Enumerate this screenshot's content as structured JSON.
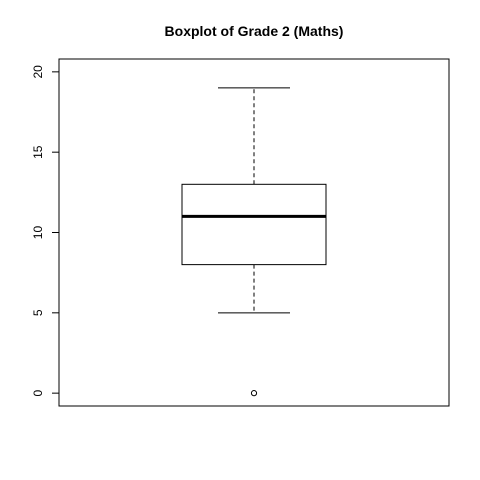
{
  "chart_data": {
    "type": "boxplot",
    "title": "Boxplot of Grade 2 (Maths)",
    "xlabel": "",
    "ylabel": "",
    "ylim": [
      -0.8,
      20.8
    ],
    "yticks": [
      0,
      5,
      10,
      15,
      20
    ],
    "grid": false,
    "boxes": [
      {
        "whisker_low": 5,
        "q1": 8,
        "median": 11,
        "q3": 13,
        "whisker_high": 19,
        "outliers": [
          0
        ]
      }
    ]
  }
}
